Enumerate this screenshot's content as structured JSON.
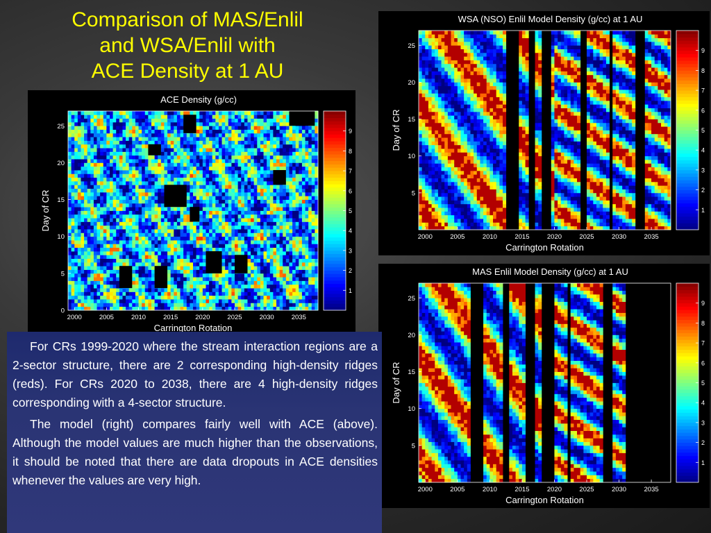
{
  "slide": {
    "title_lines": [
      "Comparison of MAS/Enlil",
      "and WSA/Enlil with",
      "ACE Density at 1 AU"
    ],
    "paragraphs": [
      "For CRs 1999-2020 where the stream interaction regions are a 2-sector structure, there are 2 corresponding high-density ridges (reds). For CRs 2020 to 2038, there are 4 high-density ridges corresponding with a 4-sector structure.",
      "The model (right) compares fairly well with ACE (above). Although the model values are much higher than the observations, it should be noted that there are data dropouts in ACE densities whenever the values are very high."
    ]
  },
  "colors": {
    "title": "#ffff00",
    "text": "#ffffff",
    "textbox_bg": "#2a3474",
    "background": "#333333"
  },
  "chart_data": [
    {
      "type": "heatmap",
      "title": "ACE Density (g/cc)",
      "xlabel": "Carrington Rotation",
      "ylabel": "Day of CR",
      "xlim": [
        1999,
        2038
      ],
      "ylim": [
        0,
        27
      ],
      "xticks": [
        "2000",
        "2005",
        "2010",
        "2015",
        "2020",
        "2025",
        "2030",
        "2035"
      ],
      "yticks": [
        "0",
        "5",
        "10",
        "15",
        "20",
        "25"
      ],
      "colorbar": {
        "min": 0,
        "max": 10,
        "ticks": [
          "1",
          "2",
          "3",
          "4",
          "5",
          "6",
          "7",
          "8",
          "9"
        ]
      },
      "dropouts": [
        [
          2011.5,
          21,
          2,
          1.5
        ],
        [
          2014,
          14,
          3.5,
          3
        ],
        [
          2017,
          24,
          2,
          2.5
        ],
        [
          2018,
          12,
          1.5,
          2
        ],
        [
          2012.5,
          3,
          2,
          3
        ],
        [
          2007,
          3,
          2,
          3
        ],
        [
          2020.5,
          5,
          2.5,
          3
        ],
        [
          2025,
          5,
          2,
          2.5
        ],
        [
          2031,
          17,
          2,
          2
        ],
        [
          2033.5,
          25,
          4,
          2
        ]
      ]
    },
    {
      "type": "heatmap",
      "title": "WSA (NSO) Enlil Model Density (g/cc) at 1 AU",
      "xlabel": "Carrington Rotation",
      "ylabel": "Day of CR",
      "xlim": [
        1999,
        2038
      ],
      "ylim": [
        0,
        27
      ],
      "xticks": [
        "2000",
        "2005",
        "2010",
        "2015",
        "2020",
        "2025",
        "2030",
        "2035"
      ],
      "yticks": [
        "5",
        "10",
        "15",
        "20",
        "25"
      ],
      "colorbar": {
        "min": 0,
        "max": 10,
        "ticks": [
          "1",
          "2",
          "3",
          "4",
          "5",
          "6",
          "7",
          "8",
          "9"
        ]
      },
      "gaps": [
        [
          2012.3,
          2014.5
        ],
        [
          2015.8,
          2017.2
        ],
        [
          2018.2,
          2019.4
        ],
        [
          2024.0,
          2024.8
        ],
        [
          2028.4,
          2029.0
        ],
        [
          2032.5,
          2034.0
        ]
      ]
    },
    {
      "type": "heatmap",
      "title": "MAS Enlil Model Density (g/cc) at 1 AU",
      "xlabel": "Carrington Rotation",
      "ylabel": "Day of CR",
      "xlim": [
        1999,
        2038
      ],
      "ylim": [
        0,
        27
      ],
      "xticks": [
        "2000",
        "2005",
        "2010",
        "2015",
        "2020",
        "2025",
        "2030",
        "2035"
      ],
      "yticks": [
        "5",
        "10",
        "15",
        "20",
        "25"
      ],
      "colorbar": {
        "min": 0,
        "max": 10,
        "ticks": [
          "1",
          "2",
          "3",
          "4",
          "5",
          "6",
          "7",
          "8",
          "9"
        ]
      },
      "gaps": [
        [
          2006.8,
          2009.2
        ],
        [
          2012.0,
          2013.0
        ],
        [
          2015.5,
          2016.8
        ],
        [
          2018.0,
          2019.8
        ],
        [
          2022.0,
          2022.6
        ],
        [
          2027.5,
          2029.0
        ],
        [
          2031.0,
          2038.0
        ]
      ]
    }
  ]
}
